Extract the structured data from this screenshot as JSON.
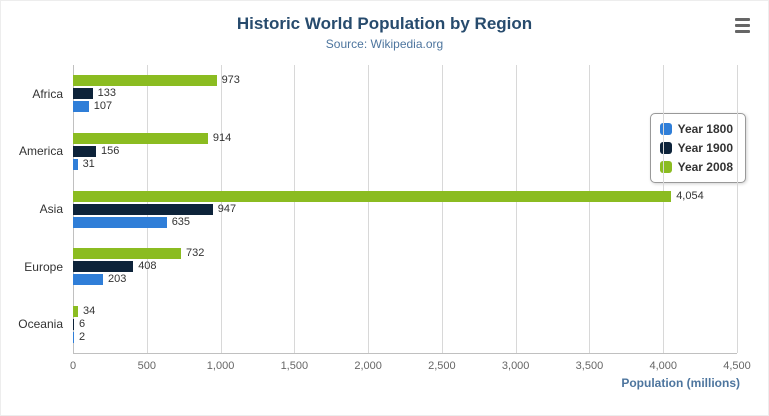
{
  "chart_data": {
    "type": "bar",
    "title": "Historic World Population by Region",
    "subtitle": "Source: Wikipedia.org",
    "categories": [
      "Africa",
      "America",
      "Asia",
      "Europe",
      "Oceania"
    ],
    "series": [
      {
        "name": "Year 1800",
        "color": "#2f7ed8",
        "values": [
          107,
          31,
          635,
          203,
          2
        ]
      },
      {
        "name": "Year 1900",
        "color": "#0d233a",
        "values": [
          133,
          156,
          947,
          408,
          6
        ]
      },
      {
        "name": "Year 2008",
        "color": "#8bbc21",
        "values": [
          973,
          914,
          4054,
          732,
          34
        ]
      }
    ],
    "xlabel": "Population (millions)",
    "ylabel": "",
    "xlim": [
      0,
      4500
    ],
    "ticks": [
      0,
      500,
      1000,
      1500,
      2000,
      2500,
      3000,
      3500,
      4000,
      4500
    ],
    "grid": true,
    "legend_position": "right",
    "bar_display_order_top_to_bottom": [
      "Year 2008",
      "Year 1900",
      "Year 1800"
    ]
  },
  "controls": {
    "context_menu_icon": "hamburger-menu"
  }
}
